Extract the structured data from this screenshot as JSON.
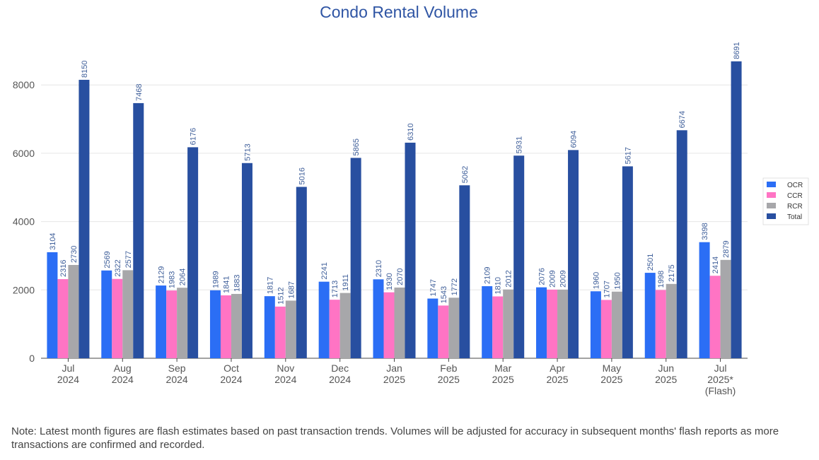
{
  "chart_data": {
    "type": "bar",
    "title": "Condo Rental Volume",
    "categories": [
      [
        "Jul",
        "2024"
      ],
      [
        "Aug",
        "2024"
      ],
      [
        "Sep",
        "2024"
      ],
      [
        "Oct",
        "2024"
      ],
      [
        "Nov",
        "2024"
      ],
      [
        "Dec",
        "2024"
      ],
      [
        "Jan",
        "2025"
      ],
      [
        "Feb",
        "2025"
      ],
      [
        "Mar",
        "2025"
      ],
      [
        "Apr",
        "2025"
      ],
      [
        "May",
        "2025"
      ],
      [
        "Jun",
        "2025"
      ],
      [
        "Jul",
        "2025*",
        "(Flash)"
      ]
    ],
    "series": [
      {
        "name": "OCR",
        "color": "#2b6ef5",
        "values": [
          3104,
          2569,
          2129,
          1989,
          1817,
          2241,
          2310,
          1747,
          2109,
          2076,
          1960,
          2501,
          3398
        ]
      },
      {
        "name": "CCR",
        "color": "#ff74c4",
        "values": [
          2316,
          2322,
          1983,
          1841,
          1512,
          1713,
          1930,
          1543,
          1810,
          2009,
          1707,
          1998,
          2414
        ]
      },
      {
        "name": "RCR",
        "color": "#a7a7aa",
        "values": [
          2730,
          2577,
          2064,
          1883,
          1687,
          1911,
          2070,
          1772,
          2012,
          2009,
          1950,
          2175,
          2879
        ]
      },
      {
        "name": "Total",
        "color": "#284fa0",
        "values": [
          8150,
          7468,
          6176,
          5713,
          5016,
          5865,
          6310,
          5062,
          5931,
          6094,
          5617,
          6674,
          8691
        ]
      }
    ],
    "y_ticks": [
      0,
      2000,
      4000,
      6000,
      8000
    ],
    "ylim": [
      0,
      9200
    ],
    "grid": true,
    "legend_position": "right",
    "data_labels": true
  },
  "note": "Note: Latest month figures are flash estimates based on past transaction trends. Volumes will be adjusted for accuracy in subsequent months' flash reports as more transactions are confirmed and recorded."
}
